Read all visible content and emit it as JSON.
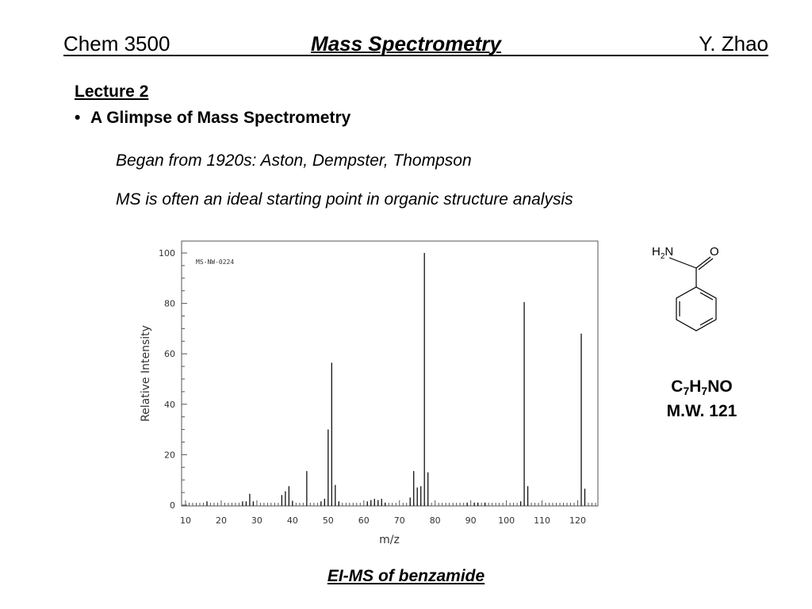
{
  "header": {
    "course": "Chem 3500",
    "topic": "Mass Spectrometry",
    "author": "Y. Zhao"
  },
  "lecture": {
    "title": "Lecture 2",
    "bullet": "A Glimpse of Mass Spectrometry",
    "lines": [
      "Began from 1920s:  Aston, Dempster, Thompson",
      "MS is often an ideal starting point in organic structure analysis"
    ]
  },
  "compound": {
    "amide_group": "H2N",
    "oxygen_label": "O",
    "formula": {
      "c": "C",
      "c_count": "7",
      "h": "H",
      "h_count": "7",
      "rest": "NO"
    },
    "mw": "M.W. 121"
  },
  "caption": "EI-MS of benzamide",
  "chart_data": {
    "type": "bar",
    "annotation": "MS-NW-0224",
    "xlabel": "m/z",
    "ylabel": "Relative Intensity",
    "xlim": [
      10,
      125
    ],
    "ylim": [
      0,
      100
    ],
    "xticks": [
      10,
      20,
      30,
      40,
      50,
      60,
      70,
      80,
      90,
      100,
      110,
      120
    ],
    "yticks": [
      0,
      20,
      40,
      60,
      80,
      100
    ],
    "grid": false,
    "peaks": [
      {
        "mz": 16,
        "intensity": 1.5
      },
      {
        "mz": 26,
        "intensity": 1.5
      },
      {
        "mz": 27,
        "intensity": 1.5
      },
      {
        "mz": 28,
        "intensity": 4.5
      },
      {
        "mz": 29,
        "intensity": 1.5
      },
      {
        "mz": 37,
        "intensity": 4
      },
      {
        "mz": 38,
        "intensity": 5.5
      },
      {
        "mz": 39,
        "intensity": 7.5
      },
      {
        "mz": 40,
        "intensity": 1.5
      },
      {
        "mz": 44,
        "intensity": 13.5
      },
      {
        "mz": 48,
        "intensity": 1.5
      },
      {
        "mz": 49,
        "intensity": 2.5
      },
      {
        "mz": 50,
        "intensity": 30
      },
      {
        "mz": 51,
        "intensity": 56.5
      },
      {
        "mz": 52,
        "intensity": 8
      },
      {
        "mz": 53,
        "intensity": 1.5
      },
      {
        "mz": 61,
        "intensity": 1.5
      },
      {
        "mz": 62,
        "intensity": 2
      },
      {
        "mz": 63,
        "intensity": 2.5
      },
      {
        "mz": 64,
        "intensity": 2
      },
      {
        "mz": 65,
        "intensity": 2.5
      },
      {
        "mz": 66,
        "intensity": 1
      },
      {
        "mz": 73,
        "intensity": 3
      },
      {
        "mz": 74,
        "intensity": 13.5
      },
      {
        "mz": 75,
        "intensity": 7
      },
      {
        "mz": 76,
        "intensity": 7.5
      },
      {
        "mz": 77,
        "intensity": 100
      },
      {
        "mz": 78,
        "intensity": 13
      },
      {
        "mz": 89,
        "intensity": 1
      },
      {
        "mz": 91,
        "intensity": 1
      },
      {
        "mz": 92,
        "intensity": 1
      },
      {
        "mz": 94,
        "intensity": 1
      },
      {
        "mz": 104,
        "intensity": 1.5
      },
      {
        "mz": 105,
        "intensity": 80.5
      },
      {
        "mz": 106,
        "intensity": 7.5
      },
      {
        "mz": 121,
        "intensity": 68
      },
      {
        "mz": 122,
        "intensity": 6.5
      }
    ]
  }
}
